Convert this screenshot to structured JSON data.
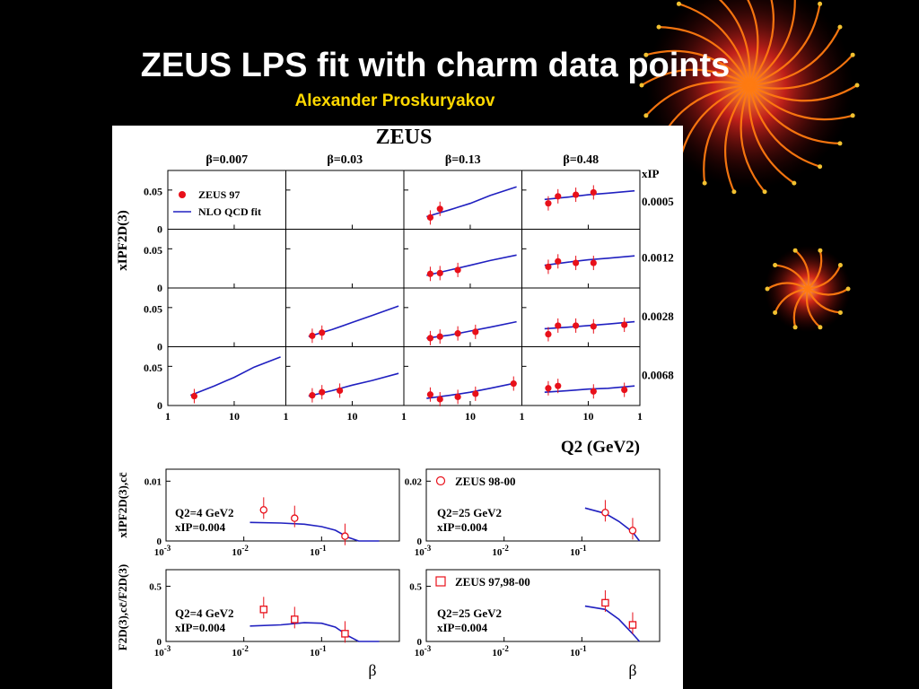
{
  "slide": {
    "title": "ZEUS LPS fit with charm data points",
    "subtitle": "Alexander Proskuryakov"
  },
  "colors": {
    "data": "#e8101a",
    "fit": "#2020c0",
    "subtitle": "#ffd800",
    "background": "#000000"
  },
  "chart_data": [
    {
      "type": "scatter",
      "panel": "x_IP F2^D(3) grid",
      "title": "ZEUS",
      "columns": [
        "β=0.007",
        "β=0.03",
        "β=0.13",
        "β=0.48"
      ],
      "rows": [
        "0.0005",
        "0.0012",
        "0.0028",
        "0.0068"
      ],
      "row_header": "xIP",
      "ylabel": "xIPF2D(3)",
      "xlabel": "Q2 (GeV2)",
      "x_scale": "log",
      "xlim": [
        1,
        60
      ],
      "ylim": [
        0,
        0.075
      ],
      "xticks": [
        "1",
        "10"
      ],
      "yticks": [
        "0",
        "0.05"
      ],
      "legend": {
        "placement": "top-left",
        "entries": [
          "ZEUS 97",
          "NLO QCD fit"
        ]
      },
      "cells": [
        [
          {
            "points": [],
            "fit": []
          },
          {
            "points": [],
            "fit": []
          },
          {
            "points": [
              [
                2.5,
                0.015
              ],
              [
                3.5,
                0.026
              ]
            ],
            "fit": [
              [
                2.2,
                0.016
              ],
              [
                5,
                0.025
              ],
              [
                10,
                0.033
              ],
              [
                20,
                0.043
              ],
              [
                50,
                0.054
              ]
            ]
          },
          {
            "points": [
              [
                2.5,
                0.033
              ],
              [
                3.5,
                0.042
              ],
              [
                6.5,
                0.044
              ],
              [
                12,
                0.047
              ]
            ],
            "fit": [
              [
                2.2,
                0.038
              ],
              [
                5,
                0.041
              ],
              [
                10,
                0.044
              ],
              [
                20,
                0.046
              ],
              [
                50,
                0.049
              ]
            ]
          }
        ],
        [
          {
            "points": [],
            "fit": []
          },
          {
            "points": [],
            "fit": []
          },
          {
            "points": [
              [
                2.5,
                0.018
              ],
              [
                3.5,
                0.019
              ],
              [
                6.5,
                0.023
              ]
            ],
            "fit": [
              [
                2.2,
                0.016
              ],
              [
                5,
                0.023
              ],
              [
                10,
                0.029
              ],
              [
                20,
                0.035
              ],
              [
                50,
                0.042
              ]
            ]
          },
          {
            "points": [
              [
                2.5,
                0.027
              ],
              [
                3.5,
                0.034
              ],
              [
                6.5,
                0.032
              ],
              [
                12,
                0.032
              ]
            ],
            "fit": [
              [
                2.2,
                0.029
              ],
              [
                5,
                0.033
              ],
              [
                10,
                0.036
              ],
              [
                20,
                0.038
              ],
              [
                50,
                0.041
              ]
            ]
          }
        ],
        [
          {
            "points": [],
            "fit": []
          },
          {
            "points": [
              [
                2.5,
                0.014
              ],
              [
                3.5,
                0.018
              ]
            ],
            "fit": [
              [
                2.2,
                0.013
              ],
              [
                5,
                0.022
              ],
              [
                10,
                0.031
              ],
              [
                20,
                0.04
              ],
              [
                50,
                0.052
              ]
            ]
          },
          {
            "points": [
              [
                2.5,
                0.011
              ],
              [
                3.5,
                0.013
              ],
              [
                6.5,
                0.017
              ],
              [
                12,
                0.019
              ]
            ],
            "fit": [
              [
                2.2,
                0.011
              ],
              [
                5,
                0.015
              ],
              [
                10,
                0.02
              ],
              [
                20,
                0.025
              ],
              [
                50,
                0.032
              ]
            ]
          },
          {
            "points": [
              [
                2.5,
                0.016
              ],
              [
                3.5,
                0.027
              ],
              [
                6.5,
                0.027
              ],
              [
                12,
                0.026
              ],
              [
                35,
                0.028
              ]
            ],
            "fit": [
              [
                2.2,
                0.023
              ],
              [
                5,
                0.025
              ],
              [
                10,
                0.027
              ],
              [
                20,
                0.029
              ],
              [
                50,
                0.032
              ]
            ]
          }
        ],
        [
          {
            "points": [
              [
                2.5,
                0.012
              ]
            ],
            "fit": [
              [
                2.2,
                0.013
              ],
              [
                5,
                0.025
              ],
              [
                10,
                0.036
              ],
              [
                20,
                0.049
              ],
              [
                50,
                0.062
              ]
            ]
          },
          {
            "points": [
              [
                2.5,
                0.013
              ],
              [
                3.5,
                0.017
              ],
              [
                6.5,
                0.019
              ]
            ],
            "fit": [
              [
                2.2,
                0.012
              ],
              [
                5,
                0.019
              ],
              [
                10,
                0.026
              ],
              [
                20,
                0.032
              ],
              [
                50,
                0.041
              ]
            ]
          },
          {
            "points": [
              [
                2.5,
                0.014
              ],
              [
                3.5,
                0.008
              ],
              [
                6.5,
                0.011
              ],
              [
                12,
                0.015
              ],
              [
                45,
                0.028
              ]
            ],
            "fit": [
              [
                2.2,
                0.009
              ],
              [
                5,
                0.013
              ],
              [
                10,
                0.017
              ],
              [
                20,
                0.022
              ],
              [
                50,
                0.029
              ]
            ]
          },
          {
            "points": [
              [
                2.5,
                0.022
              ],
              [
                3.5,
                0.025
              ],
              [
                12,
                0.018
              ],
              [
                35,
                0.02
              ]
            ],
            "fit": [
              [
                2.2,
                0.017
              ],
              [
                5,
                0.019
              ],
              [
                10,
                0.021
              ],
              [
                20,
                0.022
              ],
              [
                50,
                0.025
              ]
            ]
          }
        ]
      ]
    },
    {
      "type": "scatter",
      "panel": "x_IP F2^D(3),cc̄",
      "ylabel": "xIPF2D(3),cc̄",
      "xlabel": "β",
      "x_scale": "log",
      "plots": [
        {
          "label_q2": "Q2=4 GeV2",
          "label_xip": "xIP=0.004",
          "xlim": [
            0.001,
            1
          ],
          "ylim": [
            0,
            0.012
          ],
          "yticks": [
            "0",
            "0.01"
          ],
          "points": [
            [
              0.018,
              0.0052
            ],
            [
              0.045,
              0.0038
            ],
            [
              0.2,
              0.0008
            ]
          ],
          "fit": [
            [
              0.012,
              0.0031
            ],
            [
              0.03,
              0.003
            ],
            [
              0.06,
              0.0028
            ],
            [
              0.1,
              0.0024
            ],
            [
              0.15,
              0.0018
            ],
            [
              0.22,
              0.0006
            ],
            [
              0.3,
              0.0
            ],
            [
              0.55,
              0.0
            ]
          ]
        },
        {
          "label_q2": "Q2=25 GeV2",
          "label_xip": "xIP=0.004",
          "xlim": [
            0.001,
            1
          ],
          "ylim": [
            0,
            0.024
          ],
          "yticks": [
            "0",
            "0.02"
          ],
          "legend": "ZEUS 98-00",
          "points": [
            [
              0.2,
              0.0095
            ],
            [
              0.45,
              0.0035
            ]
          ],
          "fit": [
            [
              0.11,
              0.011
            ],
            [
              0.2,
              0.0092
            ],
            [
              0.3,
              0.0065
            ],
            [
              0.45,
              0.003
            ],
            [
              0.55,
              0.0
            ]
          ]
        }
      ]
    },
    {
      "type": "scatter",
      "panel": "F2^D(3),cc̄ / F2^D(3)",
      "ylabel": "F2D(3),cc̄/F2D(3)",
      "xlabel": "β",
      "x_scale": "log",
      "plots": [
        {
          "label_q2": "Q2=4 GeV2",
          "label_xip": "xIP=0.004",
          "xlim": [
            0.001,
            1
          ],
          "ylim": [
            0,
            0.65
          ],
          "yticks": [
            "0",
            "0.5"
          ],
          "points": [
            [
              0.018,
              0.29
            ],
            [
              0.045,
              0.2
            ],
            [
              0.2,
              0.07
            ]
          ],
          "fit": [
            [
              0.012,
              0.14
            ],
            [
              0.03,
              0.15
            ],
            [
              0.06,
              0.17
            ],
            [
              0.1,
              0.165
            ],
            [
              0.15,
              0.13
            ],
            [
              0.22,
              0.05
            ],
            [
              0.3,
              0.0
            ],
            [
              0.55,
              0.0
            ]
          ]
        },
        {
          "label_q2": "Q2=25 GeV2",
          "label_xip": "xIP=0.004",
          "xlim": [
            0.001,
            1
          ],
          "ylim": [
            0,
            0.65
          ],
          "yticks": [
            "0",
            "0.5"
          ],
          "legend": "ZEUS 97,98-00",
          "points": [
            [
              0.2,
              0.35
            ],
            [
              0.45,
              0.15
            ]
          ],
          "fit": [
            [
              0.11,
              0.32
            ],
            [
              0.2,
              0.29
            ],
            [
              0.3,
              0.2
            ],
            [
              0.45,
              0.07
            ],
            [
              0.55,
              0.0
            ]
          ]
        }
      ]
    }
  ]
}
